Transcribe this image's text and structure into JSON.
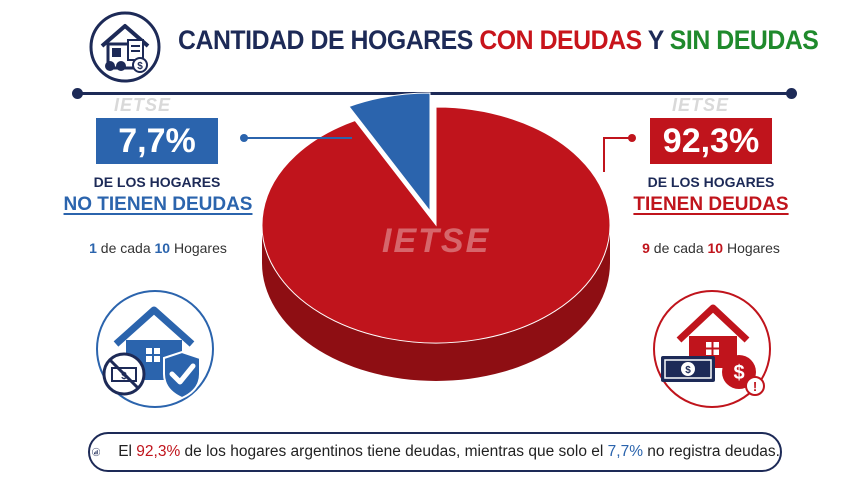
{
  "title": {
    "part1": "CANTIDAD DE HOGARES ",
    "part2": "CON DEUDAS",
    "part3": " Y ",
    "part4": "SIN DEUDAS"
  },
  "watermark": "IETSE",
  "left": {
    "percent": "7,7%",
    "line1": "DE LOS HOGARES",
    "line2": "NO TIENEN DEUDAS",
    "ratio_a": "1",
    "ratio_mid": " de cada ",
    "ratio_b": "10",
    "ratio_end": " Hogares"
  },
  "right": {
    "percent": "92,3%",
    "line1": "DE LOS HOGARES",
    "line2": "TIENEN DEUDAS",
    "ratio_a": "9",
    "ratio_mid": " de cada ",
    "ratio_b": "10",
    "ratio_end": " Hogares"
  },
  "bottom": {
    "pre": "El ",
    "pct1": "92,3%",
    "mid": " de los hogares argentinos tiene deudas, mientras que solo el ",
    "pct2": "7,7%",
    "post": " no registra deudas."
  },
  "colors": {
    "navy": "#1d2a57",
    "red": "#c0141c",
    "blue": "#2b64ad",
    "green": "#1f8a2c"
  },
  "chart_data": {
    "type": "pie",
    "title": "CANTIDAD DE HOGARES CON DEUDAS Y SIN DEUDAS",
    "slices": [
      {
        "label": "TIENEN DEUDAS",
        "value": 92.3,
        "color": "#c0141c"
      },
      {
        "label": "NO TIENEN DEUDAS",
        "value": 7.7,
        "color": "#2b64ad"
      }
    ],
    "units": "%"
  }
}
